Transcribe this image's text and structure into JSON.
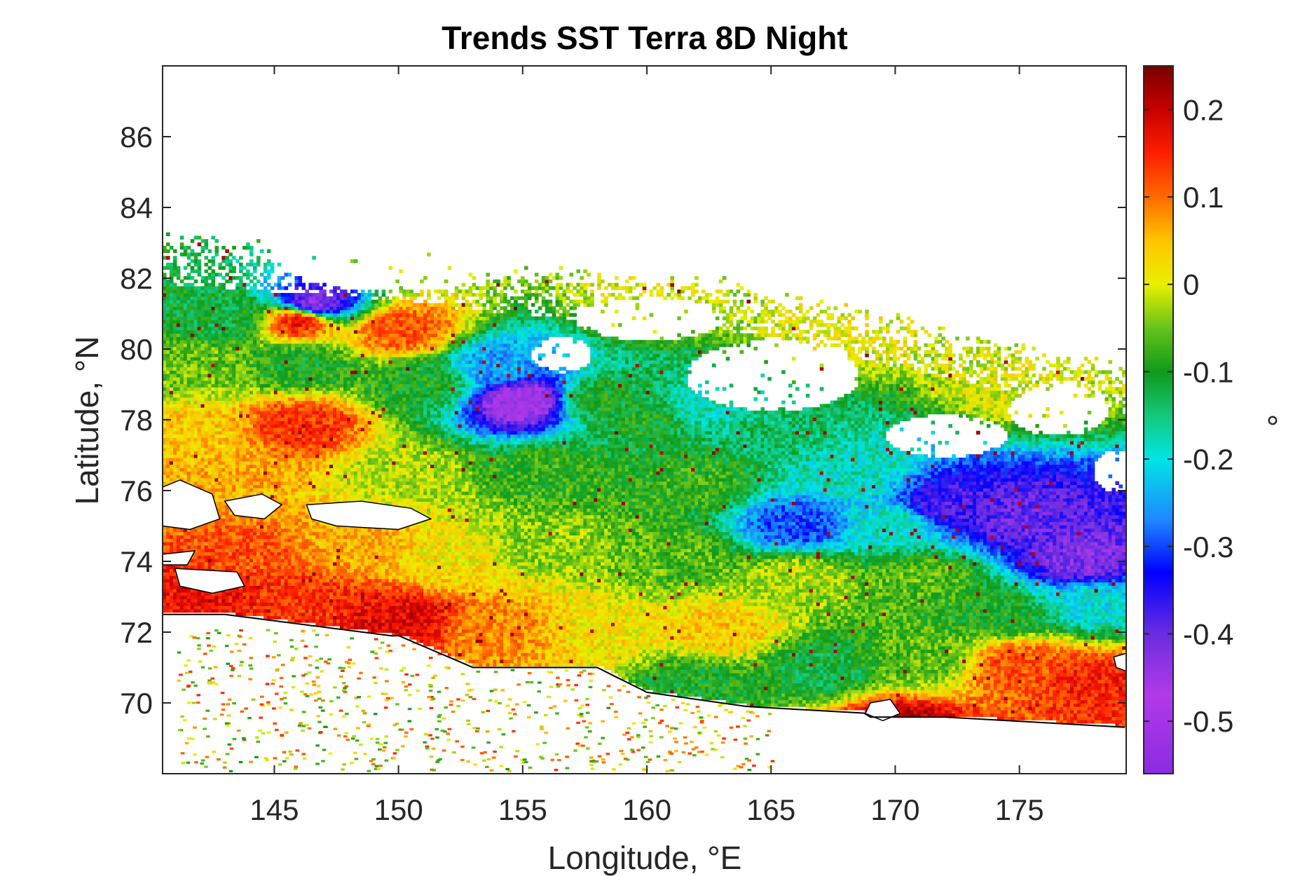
{
  "chart_data": {
    "type": "heatmap",
    "title": "Trends SST Terra 8D Night",
    "xlabel": "Longitude, °E",
    "ylabel": "Latitude, °N",
    "xlim": [
      140.5,
      179.3
    ],
    "ylim": [
      68,
      88
    ],
    "x_ticks": [
      145,
      150,
      155,
      160,
      165,
      170,
      175
    ],
    "x_tick_labels": [
      "145",
      "150",
      "155",
      "160",
      "165",
      "170",
      "175"
    ],
    "y_ticks": [
      70,
      72,
      74,
      76,
      78,
      80,
      82,
      84,
      86
    ],
    "y_tick_labels": [
      "70",
      "72",
      "74",
      "76",
      "78",
      "80",
      "82",
      "84",
      "86"
    ],
    "colorbar": {
      "label": "°",
      "range": [
        -0.56,
        0.25
      ],
      "ticks": [
        0.2,
        0.1,
        0,
        -0.1,
        -0.2,
        -0.3,
        -0.4,
        -0.5
      ],
      "tick_labels": [
        "0.2",
        "0.1",
        "0",
        "-0.1",
        "-0.2",
        "-0.3",
        "-0.4",
        "-0.5"
      ],
      "colormap": [
        {
          "v": -0.56,
          "c": "#8a2be2"
        },
        {
          "v": -0.47,
          "c": "#b23ae8"
        },
        {
          "v": -0.4,
          "c": "#6a2de0"
        },
        {
          "v": -0.33,
          "c": "#0000ff"
        },
        {
          "v": -0.27,
          "c": "#1e88ff"
        },
        {
          "v": -0.2,
          "c": "#00e5e5"
        },
        {
          "v": -0.15,
          "c": "#14c87a"
        },
        {
          "v": -0.1,
          "c": "#0f9a1a"
        },
        {
          "v": -0.05,
          "c": "#66c21a"
        },
        {
          "v": 0.0,
          "c": "#e8f000"
        },
        {
          "v": 0.05,
          "c": "#ffc400"
        },
        {
          "v": 0.1,
          "c": "#ff6a00"
        },
        {
          "v": 0.15,
          "c": "#ff1e00"
        },
        {
          "v": 0.2,
          "c": "#c80000"
        },
        {
          "v": 0.25,
          "c": "#780000"
        }
      ]
    },
    "regions": [
      {
        "lon": 143,
        "lat": 80.8,
        "value": -0.12
      },
      {
        "lon": 146,
        "lat": 80.8,
        "value": 0.18
      },
      {
        "lon": 146.5,
        "lat": 81.2,
        "value": -0.45
      },
      {
        "lon": 150,
        "lat": 80.5,
        "value": 0.12
      },
      {
        "lon": 142,
        "lat": 79.5,
        "value": -0.05
      },
      {
        "lon": 146,
        "lat": 79.5,
        "value": -0.1
      },
      {
        "lon": 151,
        "lat": 79,
        "value": -0.1
      },
      {
        "lon": 154,
        "lat": 79.5,
        "value": -0.25
      },
      {
        "lon": 155,
        "lat": 78.5,
        "value": -0.48
      },
      {
        "lon": 158,
        "lat": 78.5,
        "value": -0.1
      },
      {
        "lon": 160,
        "lat": 78,
        "value": -0.1
      },
      {
        "lon": 162,
        "lat": 78.3,
        "value": -0.18
      },
      {
        "lon": 165,
        "lat": 77.5,
        "value": -0.14
      },
      {
        "lon": 146,
        "lat": 77.8,
        "value": 0.14
      },
      {
        "lon": 142,
        "lat": 77.5,
        "value": 0.04
      },
      {
        "lon": 143,
        "lat": 76.5,
        "value": 0.06
      },
      {
        "lon": 150,
        "lat": 76.5,
        "value": -0.02
      },
      {
        "lon": 156,
        "lat": 76.5,
        "value": -0.08
      },
      {
        "lon": 162,
        "lat": 76.2,
        "value": -0.08
      },
      {
        "lon": 168,
        "lat": 76.5,
        "value": -0.18
      },
      {
        "lon": 166,
        "lat": 75,
        "value": -0.3
      },
      {
        "lon": 170,
        "lat": 75,
        "value": -0.18
      },
      {
        "lon": 172,
        "lat": 75.5,
        "value": -0.38
      },
      {
        "lon": 175,
        "lat": 75.2,
        "value": -0.4
      },
      {
        "lon": 177.5,
        "lat": 74,
        "value": -0.42
      },
      {
        "lon": 178,
        "lat": 72.8,
        "value": -0.2
      },
      {
        "lon": 144,
        "lat": 74,
        "value": 0.12
      },
      {
        "lon": 148,
        "lat": 74.5,
        "value": 0.06
      },
      {
        "lon": 152,
        "lat": 74,
        "value": 0.02
      },
      {
        "lon": 156,
        "lat": 74.5,
        "value": -0.04
      },
      {
        "lon": 161,
        "lat": 74,
        "value": -0.06
      },
      {
        "lon": 166,
        "lat": 73.5,
        "value": -0.02
      },
      {
        "lon": 171,
        "lat": 73.5,
        "value": -0.06
      },
      {
        "lon": 174,
        "lat": 72.5,
        "value": -0.1
      },
      {
        "lon": 142,
        "lat": 73,
        "value": 0.17
      },
      {
        "lon": 146,
        "lat": 72.8,
        "value": 0.14
      },
      {
        "lon": 150,
        "lat": 72.3,
        "value": 0.18
      },
      {
        "lon": 154,
        "lat": 72,
        "value": 0.08
      },
      {
        "lon": 158,
        "lat": 72,
        "value": 0.02
      },
      {
        "lon": 163,
        "lat": 72,
        "value": 0.04
      },
      {
        "lon": 167,
        "lat": 71,
        "value": -0.12
      },
      {
        "lon": 171,
        "lat": 71.2,
        "value": -0.06
      },
      {
        "lon": 175,
        "lat": 71,
        "value": 0.12
      },
      {
        "lon": 178,
        "lat": 70.5,
        "value": 0.15
      },
      {
        "lon": 162,
        "lat": 70.5,
        "value": -0.1
      },
      {
        "lon": 170,
        "lat": 69.2,
        "value": 0.22
      },
      {
        "lon": 150,
        "lat": 83,
        "value": 0.0
      },
      {
        "lon": 160,
        "lat": 81.5,
        "value": 0.0
      },
      {
        "lon": 168,
        "lat": 80.5,
        "value": 0.01
      },
      {
        "lon": 175,
        "lat": 79,
        "value": 0.0
      }
    ]
  }
}
